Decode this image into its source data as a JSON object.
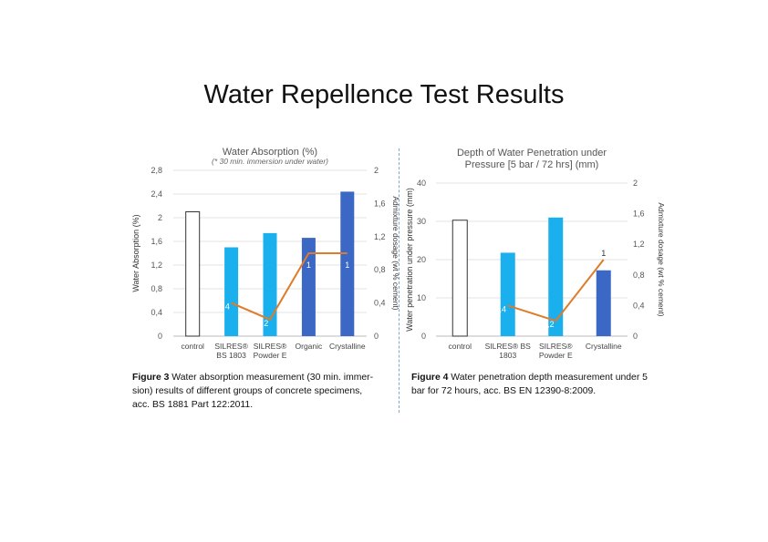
{
  "slide_title": "Water Repellence Test Results",
  "chart_data": [
    {
      "type": "bar",
      "title": "Water Absorption (%)",
      "subtitle": "(* 30 min. immersion under water)",
      "categories": [
        "control",
        "SILRES® BS 1803",
        "SILRES® Powder E",
        "Organic",
        "Crystalline"
      ],
      "category_lines": [
        [
          "control"
        ],
        [
          "SILRES®",
          "BS 1803"
        ],
        [
          "SILRES®",
          "Powder E"
        ],
        [
          "Organic"
        ],
        [
          "Crystalline"
        ]
      ],
      "series": [
        {
          "name": "Water Absorption (%)",
          "values": [
            2.1,
            1.5,
            1.74,
            1.66,
            2.44
          ],
          "colors": [
            "#ffffff",
            "#1ab0ee",
            "#1ab0ee",
            "#3a68c4",
            "#3a68c4"
          ]
        },
        {
          "name": "Admixture dosage (wt % cement)",
          "type": "line",
          "axis": "right",
          "values": [
            null,
            0.4,
            0.2,
            1,
            1
          ],
          "labels": [
            "",
            "0,4",
            "0,2",
            "1",
            "1"
          ],
          "color": "#e07b2a"
        }
      ],
      "ylabel": "Water Absorption (%)",
      "ylim": [
        0,
        2.8
      ],
      "yticks": [
        0,
        0.4,
        0.8,
        1.2,
        1.6,
        2,
        2.4,
        2.8
      ],
      "ytick_labels": [
        "0",
        "0,4",
        "0,8",
        "1,2",
        "1,6",
        "2",
        "2,4",
        "2,8"
      ],
      "y2label": "Admixture dosage (wt % cement)",
      "y2lim": [
        0,
        2
      ],
      "y2ticks": [
        0,
        0.4,
        0.8,
        1.2,
        1.6,
        2
      ],
      "y2tick_labels": [
        "0",
        "0,4",
        "0,8",
        "1,2",
        "1,6",
        "2"
      ],
      "grid": true
    },
    {
      "type": "bar",
      "title": "Depth of Water Penetration under Pressure [5 bar / 72 hrs] (mm)",
      "title_lines": [
        "Depth of Water Penetration under",
        "Pressure [5 bar / 72 hrs] (mm)"
      ],
      "categories": [
        "control",
        "SILRES® BS 1803",
        "SILRES® Powder E",
        "Crystalline"
      ],
      "category_lines": [
        [
          "control"
        ],
        [
          "SILRES® BS",
          "1803"
        ],
        [
          "SILRES®",
          "Powder E"
        ],
        [
          "Crystalline"
        ]
      ],
      "series": [
        {
          "name": "Water penetration under pressure (mm)",
          "values": [
            30.3,
            21.8,
            31,
            17.2
          ],
          "colors": [
            "#ffffff",
            "#1ab0ee",
            "#1ab0ee",
            "#3a68c4"
          ]
        },
        {
          "name": "Admixture dosage (wt % cement)",
          "type": "line",
          "axis": "right",
          "values": [
            null,
            0.4,
            0.2,
            1
          ],
          "labels": [
            "",
            "0,4",
            "0,2",
            "1"
          ],
          "color": "#e07b2a"
        }
      ],
      "ylabel": "Water penetration under pressure (mm)",
      "ylim": [
        0,
        40
      ],
      "yticks": [
        0,
        10,
        20,
        30,
        40
      ],
      "ytick_labels": [
        "0",
        "10",
        "20",
        "30",
        "40"
      ],
      "y2label": "Admixture dosage (wt % cement)",
      "y2lim": [
        0,
        2
      ],
      "y2ticks": [
        0,
        0.4,
        0.8,
        1.2,
        1.6,
        2
      ],
      "y2tick_labels": [
        "0",
        "0,4",
        "0,8",
        "1,2",
        "1,6",
        "2"
      ],
      "grid": true
    }
  ],
  "captions": [
    {
      "label": "Figure 3",
      "lines": [
        " Water absorption measurement (30 min. immer-",
        "sion) results of different groups of concrete specimens,",
        "acc. BS 1881 Part 122:2011."
      ]
    },
    {
      "label": "Figure 4",
      "lines": [
        " Water penetration depth measurement under 5",
        "bar for 72 hours, acc. BS EN 12390-8:2009."
      ]
    }
  ]
}
